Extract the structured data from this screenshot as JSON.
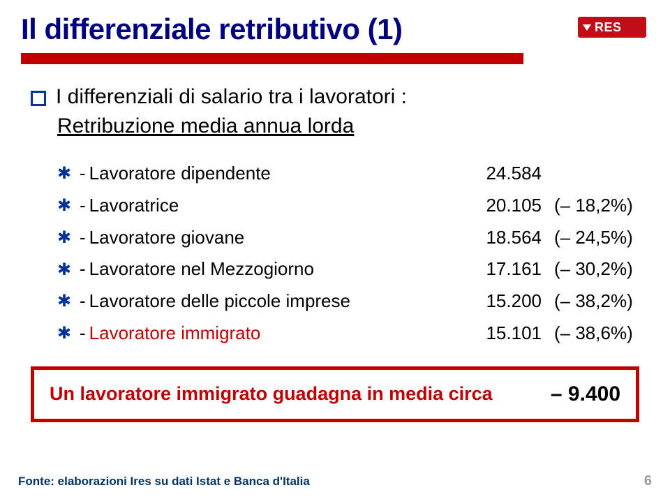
{
  "logo": {
    "label": "RES"
  },
  "title": "Il differenziale retributivo (1)",
  "intro": "I differenziali di salario tra i lavoratori :",
  "subtitle": "Retribuzione media annua lorda",
  "rows": [
    {
      "label": "Lavoratore dipendente",
      "value": "24.584",
      "delta": "",
      "highlight": false
    },
    {
      "label": "Lavoratrice",
      "value": "20.105",
      "delta": "(– 18,2%)",
      "highlight": false
    },
    {
      "label": "Lavoratore giovane",
      "value": "18.564",
      "delta": "(– 24,5%)",
      "highlight": false
    },
    {
      "label": "Lavoratore nel Mezzogiorno",
      "value": "17.161",
      "delta": "(– 30,2%)",
      "highlight": false
    },
    {
      "label": "Lavoratore delle piccole imprese",
      "value": "15.200",
      "delta": "(– 38,2%)",
      "highlight": false
    },
    {
      "label": "Lavoratore immigrato",
      "value": "15.101",
      "delta": "(– 38,6%)",
      "highlight": true
    }
  ],
  "box": {
    "label": "Un lavoratore immigrato guadagna in media circa",
    "value": "– 9.400"
  },
  "footer": {
    "source": "Fonte: elaborazioni Ires su dati Istat e Banca d'Italia",
    "page": "6"
  },
  "colors": {
    "title": "#000080",
    "accent_red": "#c00000",
    "logo_red": "#c20d19",
    "bullet_blue": "#003399",
    "footer_blue": "#003366",
    "footer_gray": "#999999"
  }
}
